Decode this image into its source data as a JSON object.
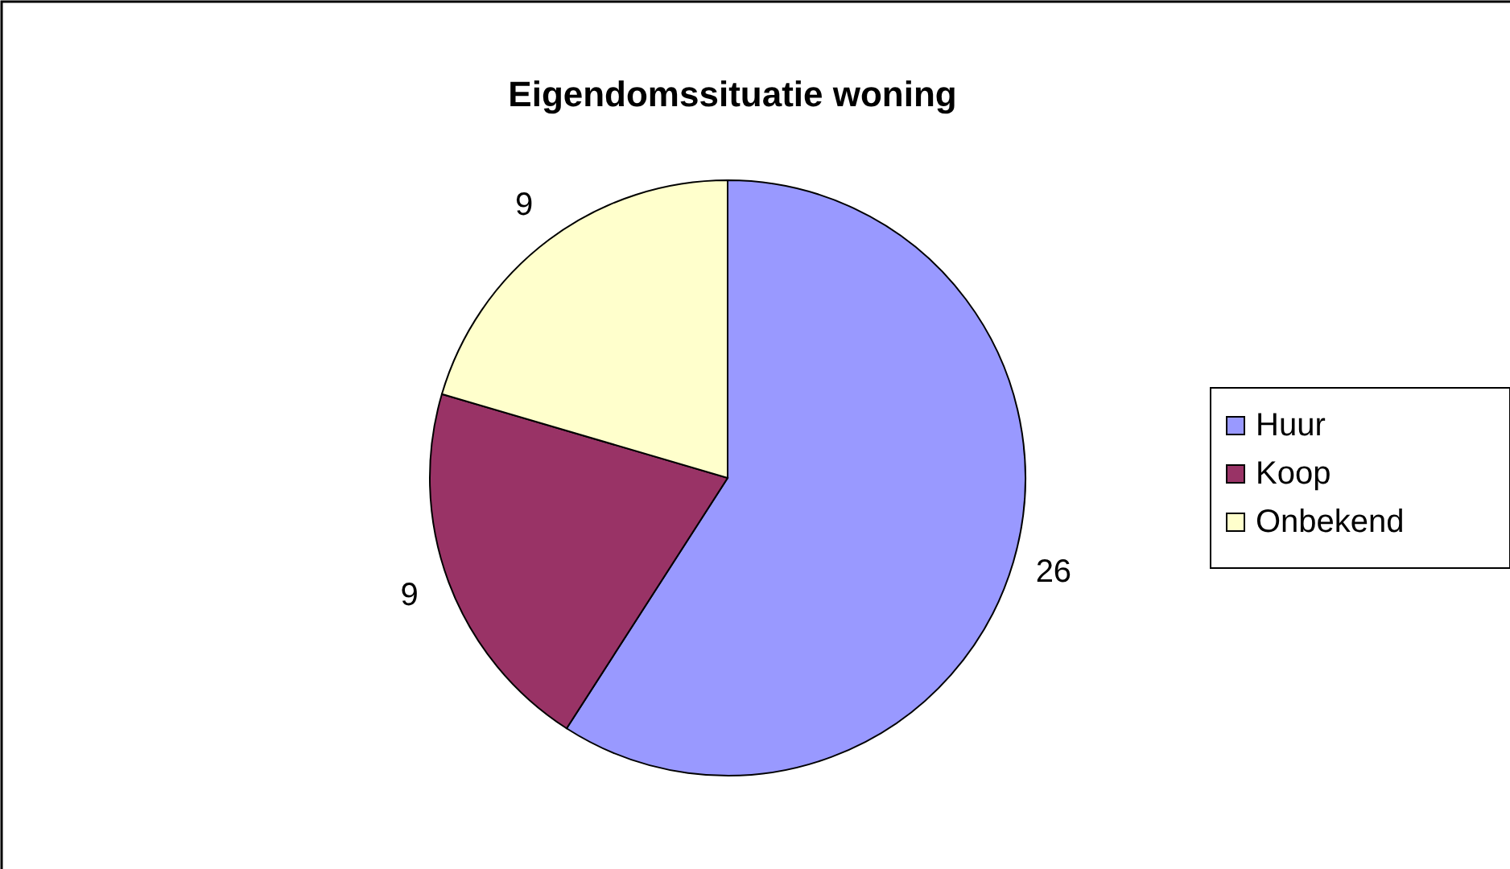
{
  "chart_data": {
    "type": "pie",
    "title": "Eigendomssituatie woning",
    "categories": [
      "Huur",
      "Koop",
      "Onbekend"
    ],
    "values": [
      26,
      9,
      9
    ],
    "colors": [
      "#9999ff",
      "#993366",
      "#ffffcc"
    ],
    "data_labels": true,
    "legend": "right"
  }
}
